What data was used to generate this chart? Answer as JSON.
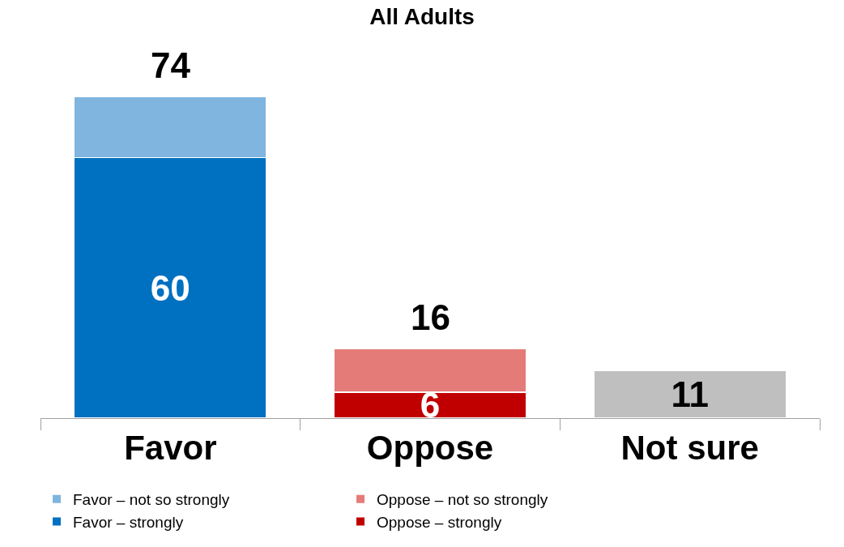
{
  "chart_data": {
    "type": "bar",
    "title": "All Adults",
    "categories": [
      "Favor",
      "Oppose",
      "Not sure"
    ],
    "stacked": true,
    "legend": "bottom",
    "series": [
      {
        "name": "Favor – strongly",
        "color": "#0070c0",
        "values": [
          60,
          null,
          null
        ],
        "value_labels": [
          "60",
          null,
          null
        ]
      },
      {
        "name": "Favor – not so strongly",
        "color": "#7fb5de",
        "values": [
          14,
          null,
          null
        ],
        "value_labels": [
          null,
          null,
          null
        ]
      },
      {
        "name": "Oppose – strongly",
        "color": "#c00000",
        "values": [
          null,
          6,
          null
        ],
        "value_labels": [
          null,
          "6",
          null
        ]
      },
      {
        "name": "Oppose – not so strongly",
        "color": "#e57b78",
        "values": [
          null,
          10,
          null
        ],
        "value_labels": [
          null,
          null,
          null
        ]
      },
      {
        "color": "#bfbfbf",
        "values": [
          null,
          null,
          11
        ],
        "value_labels": [
          null,
          null,
          "11"
        ]
      }
    ],
    "totals": [
      "74",
      "16",
      null
    ]
  }
}
